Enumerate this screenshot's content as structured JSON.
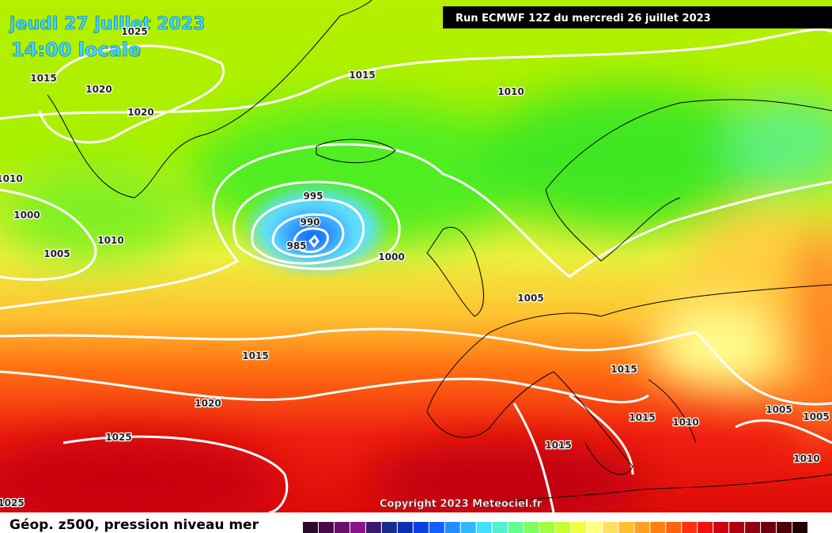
{
  "header": {
    "date": "jeudi 27 juillet 2023",
    "time": "14:00 locale",
    "run": "Run ECMWF 12Z du mercredi 26 juillet 2023"
  },
  "map": {
    "isobar_labels": [
      "1025",
      "1015",
      "1020",
      "1020",
      "1015",
      "1010",
      "1010",
      "1000",
      "1010",
      "1005",
      "995",
      "990",
      "985",
      "1000",
      "1005",
      "1015",
      "1015",
      "1020",
      "1005",
      "1005",
      "1015",
      "1010",
      "1025",
      "1015",
      "1010",
      "1025"
    ],
    "copyright": "Copyright 2023 Meteociel.fr"
  },
  "footer": {
    "legend_title": "Géop. z500, pression niveau mer",
    "colorbar": [
      "#2a0a2a",
      "#4a0a4a",
      "#6a106a",
      "#8a148a",
      "#3a1a6a",
      "#1a2a8a",
      "#0a30b0",
      "#0a40e0",
      "#1060ff",
      "#2090ff",
      "#30b8ff",
      "#40e0ff",
      "#50f0d0",
      "#60ff90",
      "#80ff60",
      "#a0ff40",
      "#c8ff30",
      "#f0ff40",
      "#ffff80",
      "#ffe060",
      "#ffc030",
      "#ffa020",
      "#ff8010",
      "#ff6010",
      "#ff3010",
      "#f01010",
      "#d00010",
      "#b00010",
      "#900010",
      "#700010",
      "#500008",
      "#200000"
    ]
  }
}
